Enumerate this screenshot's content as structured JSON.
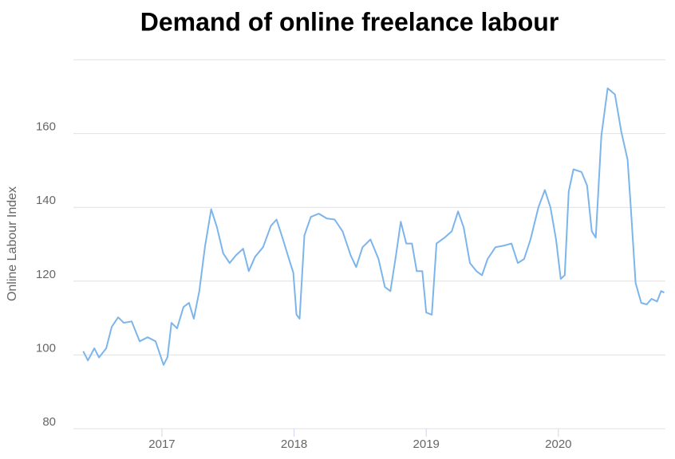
{
  "chart_data": {
    "type": "line",
    "title": "Demand of online freelance labour",
    "y_label": "Online Labour Index",
    "x": [
      2016.404,
      2016.44,
      2016.488,
      2016.524,
      2016.578,
      2016.62,
      2016.669,
      2016.711,
      2016.771,
      2016.831,
      2016.892,
      2016.952,
      2017.012,
      2017.042,
      2017.072,
      2017.114,
      2017.163,
      2017.205,
      2017.241,
      2017.283,
      2017.325,
      2017.373,
      2017.416,
      2017.464,
      2017.512,
      2017.56,
      2017.614,
      2017.657,
      2017.705,
      2017.765,
      2017.825,
      2017.867,
      2017.916,
      2017.958,
      2017.994,
      2018.018,
      2018.042,
      2018.078,
      2018.127,
      2018.187,
      2018.247,
      2018.307,
      2018.367,
      2018.428,
      2018.47,
      2018.518,
      2018.578,
      2018.639,
      2018.687,
      2018.729,
      2018.771,
      2018.807,
      2018.849,
      2018.892,
      2018.928,
      2018.97,
      2019.0,
      2019.042,
      2019.078,
      2019.139,
      2019.193,
      2019.241,
      2019.283,
      2019.331,
      2019.38,
      2019.422,
      2019.464,
      2019.524,
      2019.584,
      2019.645,
      2019.693,
      2019.741,
      2019.789,
      2019.849,
      2019.898,
      2019.94,
      2019.982,
      2020.018,
      2020.048,
      2020.078,
      2020.114,
      2020.175,
      2020.217,
      2020.253,
      2020.283,
      2020.325,
      2020.373,
      2020.428,
      2020.476,
      2020.524,
      2020.548,
      2020.584,
      2020.627,
      2020.669,
      2020.705,
      2020.747,
      2020.777,
      2020.801
    ],
    "series": [
      {
        "name": "Online Labour Index",
        "color": "#7cb5ec",
        "values": [
          101,
          98.5,
          101.8,
          99.3,
          101.8,
          107.6,
          110.2,
          108.7,
          109.1,
          103.7,
          104.8,
          103.7,
          97.3,
          99.4,
          108.7,
          107.2,
          113,
          114.1,
          109.8,
          117.3,
          129.2,
          139.5,
          134.6,
          127.5,
          124.9,
          127,
          128.8,
          122.7,
          126.6,
          129.2,
          135,
          136.7,
          131.3,
          126.4,
          122.3,
          110.9,
          109.8,
          132.4,
          137.4,
          138.3,
          137,
          136.7,
          133.5,
          127,
          123.8,
          129.2,
          131.3,
          126,
          118.4,
          117.3,
          127,
          136.1,
          130.2,
          130.2,
          122.7,
          122.7,
          111.5,
          110.9,
          130.2,
          131.8,
          133.5,
          138.9,
          134.6,
          124.9,
          122.7,
          121.6,
          126,
          129.2,
          129.6,
          130.2,
          124.9,
          126,
          131.3,
          140,
          144.7,
          140,
          131.3,
          120.6,
          121.6,
          144.3,
          150.3,
          149.6,
          145.9,
          133.5,
          131.8,
          159.4,
          172.3,
          170.6,
          160.5,
          152.9,
          140,
          119.5,
          114.1,
          113.7,
          115.2,
          114.5,
          117.3,
          116.9
        ]
      }
    ],
    "xlim": [
      2016.33,
      2020.81
    ],
    "xticks": [
      2017,
      2018,
      2019,
      2020
    ],
    "ylim": [
      80,
      180
    ],
    "yticks": [
      80,
      100,
      120,
      140,
      160
    ],
    "grid": true
  }
}
